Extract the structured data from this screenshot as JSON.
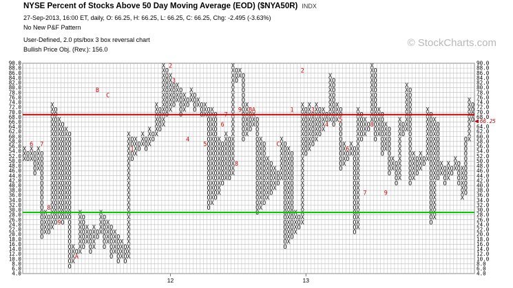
{
  "header": {
    "title": "NYSE Percent of Stocks Above 50 Day Moving Average (EOD) ($NYA50R)",
    "exchange": "INDX",
    "line1": "27-Sep-2013, 16:00 ET, daily, O: 66.25, H: 66.25, L: 66.25, C: 66.25, Chg: -2.495 (-3.63%)",
    "line2": "No New P&F Pattern",
    "line3": "User-Defined, 2.0 pts/box 3 box reversal chart",
    "line4": "Bullish Price Obj. (Rev.): 156.0"
  },
  "watermark": "© StockCharts.com",
  "colors": {
    "x_mark": "#111111",
    "o_mark": "#111111",
    "month_marker": "#cc0000",
    "upper_line": "#cc0000",
    "lower_line": "#00cc00",
    "grid": "#bbbbbb",
    "last_price": "#cc0000"
  },
  "chart_data": {
    "type": "point-and-figure",
    "box_size": 2,
    "reversal": 3,
    "y_range": [
      4,
      90
    ],
    "y_ticks_left": [
      "90.0",
      "88.0",
      "86.0",
      "84.0",
      "82.0",
      "80.0",
      "78.0",
      "76.0",
      "74.0",
      "72.0",
      "70.0",
      "68.0",
      "66.0",
      "64.0",
      "62.0",
      "60.0",
      "58.0",
      "56.0",
      "54.0",
      "52.0",
      "50.0",
      "48.0",
      "46.0",
      "44.0",
      "42.0",
      "40.0",
      "38.0",
      "36.0",
      "34.0",
      "32.0",
      "30.0",
      "28.0",
      "26.0",
      "24.0",
      "22.0",
      "20.0",
      "18.0",
      "16.0",
      "14.0",
      "12.0",
      "10.0",
      "8.0",
      "6.0",
      "4.0"
    ],
    "y_ticks_right": [
      "90.0",
      "88.0",
      "86.0",
      "84.0",
      "82.0",
      "80.0",
      "78.0",
      "76.0",
      "74.0",
      "72.0",
      "70.0",
      "68.0",
      "64.0",
      "62.0",
      "60.0",
      "58.0",
      "56.0",
      "54.0",
      "52.0",
      "50.0",
      "48.0",
      "46.0",
      "44.0",
      "42.0",
      "40.0",
      "38.0",
      "36.0",
      "34.0",
      "32.0",
      "30.0",
      "28.0",
      "26.0",
      "24.0",
      "22.0",
      "20.0",
      "18.0",
      "16.0",
      "14.0",
      "12.0",
      "10.0",
      "8.0",
      "6.0",
      "4.0"
    ],
    "last_value": 66.25,
    "last_value_label": "66.25",
    "upper_signal_line": 69,
    "lower_signal_line": 29,
    "x_labels": [
      {
        "label": "12",
        "column": 42
      },
      {
        "label": "13",
        "column": 81
      }
    ],
    "columns": [
      {
        "type": "X",
        "low": 50,
        "high": 54
      },
      {
        "type": "O",
        "low": 50,
        "high": 52
      },
      {
        "type": "X",
        "low": 50,
        "high": 54
      },
      {
        "type": "O",
        "low": 44,
        "high": 52
      },
      {
        "type": "X",
        "low": 46,
        "high": 54
      },
      {
        "type": "O",
        "low": 18,
        "high": 52
      },
      {
        "type": "X",
        "low": 20,
        "high": 28
      },
      {
        "type": "O",
        "low": 20,
        "high": 26
      },
      {
        "type": "X",
        "low": 22,
        "high": 72
      },
      {
        "type": "O",
        "low": 24,
        "high": 70
      },
      {
        "type": "X",
        "low": 26,
        "high": 66
      },
      {
        "type": "O",
        "low": 24,
        "high": 64
      },
      {
        "type": "X",
        "low": 26,
        "high": 62
      },
      {
        "type": "O",
        "low": 6,
        "high": 60
      },
      {
        "type": "X",
        "low": 8,
        "high": 14
      },
      {
        "type": "O",
        "low": 10,
        "high": 12
      },
      {
        "type": "X",
        "low": 12,
        "high": 28
      },
      {
        "type": "O",
        "low": 14,
        "high": 26
      },
      {
        "type": "X",
        "low": 16,
        "high": 22
      },
      {
        "type": "O",
        "low": 12,
        "high": 20
      },
      {
        "type": "X",
        "low": 14,
        "high": 22
      },
      {
        "type": "O",
        "low": 18,
        "high": 20
      },
      {
        "type": "X",
        "low": 20,
        "high": 28
      },
      {
        "type": "O",
        "low": 14,
        "high": 26
      },
      {
        "type": "X",
        "low": 16,
        "high": 24
      },
      {
        "type": "O",
        "low": 10,
        "high": 22
      },
      {
        "type": "X",
        "low": 12,
        "high": 20
      },
      {
        "type": "O",
        "low": 8,
        "high": 18
      },
      {
        "type": "X",
        "low": 10,
        "high": 16
      },
      {
        "type": "O",
        "low": 8,
        "high": 14
      },
      {
        "type": "X",
        "low": 10,
        "high": 60
      },
      {
        "type": "O",
        "low": 50,
        "high": 58
      },
      {
        "type": "X",
        "low": 52,
        "high": 58
      },
      {
        "type": "O",
        "low": 54,
        "high": 56
      },
      {
        "type": "X",
        "low": 56,
        "high": 60
      },
      {
        "type": "O",
        "low": 54,
        "high": 58
      },
      {
        "type": "X",
        "low": 56,
        "high": 62
      },
      {
        "type": "O",
        "low": 58,
        "high": 60
      },
      {
        "type": "X",
        "low": 60,
        "high": 72
      },
      {
        "type": "O",
        "low": 62,
        "high": 70
      },
      {
        "type": "X",
        "low": 64,
        "high": 88
      },
      {
        "type": "O",
        "low": 68,
        "high": 86
      },
      {
        "type": "X",
        "low": 70,
        "high": 84
      },
      {
        "type": "O",
        "low": 72,
        "high": 82
      },
      {
        "type": "X",
        "low": 74,
        "high": 80
      },
      {
        "type": "O",
        "low": 68,
        "high": 78
      },
      {
        "type": "X",
        "low": 70,
        "high": 76
      },
      {
        "type": "O",
        "low": 72,
        "high": 74
      },
      {
        "type": "X",
        "low": 74,
        "high": 78
      },
      {
        "type": "O",
        "low": 70,
        "high": 76
      },
      {
        "type": "X",
        "low": 72,
        "high": 74
      },
      {
        "type": "O",
        "low": 68,
        "high": 72
      },
      {
        "type": "X",
        "low": 68,
        "high": 72
      },
      {
        "type": "O",
        "low": 30,
        "high": 70
      },
      {
        "type": "X",
        "low": 32,
        "high": 70
      },
      {
        "type": "O",
        "low": 34,
        "high": 68
      },
      {
        "type": "X",
        "low": 36,
        "high": 58
      },
      {
        "type": "O",
        "low": 40,
        "high": 56
      },
      {
        "type": "X",
        "low": 42,
        "high": 60
      },
      {
        "type": "O",
        "low": 42,
        "high": 58
      },
      {
        "type": "X",
        "low": 44,
        "high": 88
      },
      {
        "type": "O",
        "low": 82,
        "high": 86
      },
      {
        "type": "X",
        "low": 84,
        "high": 86
      },
      {
        "type": "O",
        "low": 58,
        "high": 84
      },
      {
        "type": "X",
        "low": 60,
        "high": 72
      },
      {
        "type": "O",
        "low": 62,
        "high": 70
      },
      {
        "type": "X",
        "low": 64,
        "high": 68
      },
      {
        "type": "O",
        "low": 28,
        "high": 66
      },
      {
        "type": "X",
        "low": 30,
        "high": 58
      },
      {
        "type": "O",
        "low": 32,
        "high": 56
      },
      {
        "type": "X",
        "low": 34,
        "high": 50
      },
      {
        "type": "O",
        "low": 36,
        "high": 48
      },
      {
        "type": "X",
        "low": 38,
        "high": 46
      },
      {
        "type": "O",
        "low": 40,
        "high": 44
      },
      {
        "type": "X",
        "low": 42,
        "high": 58
      },
      {
        "type": "O",
        "low": 14,
        "high": 56
      },
      {
        "type": "X",
        "low": 16,
        "high": 54
      },
      {
        "type": "O",
        "low": 18,
        "high": 52
      },
      {
        "type": "X",
        "low": 20,
        "high": 28
      },
      {
        "type": "O",
        "low": 22,
        "high": 26
      },
      {
        "type": "X",
        "low": 24,
        "high": 72
      },
      {
        "type": "O",
        "low": 52,
        "high": 70
      },
      {
        "type": "X",
        "low": 54,
        "high": 72
      },
      {
        "type": "O",
        "low": 56,
        "high": 70
      },
      {
        "type": "X",
        "low": 58,
        "high": 72
      },
      {
        "type": "O",
        "low": 60,
        "high": 70
      },
      {
        "type": "X",
        "low": 62,
        "high": 70
      },
      {
        "type": "O",
        "low": 64,
        "high": 68
      },
      {
        "type": "X",
        "low": 66,
        "high": 84
      },
      {
        "type": "O",
        "low": 64,
        "high": 82
      },
      {
        "type": "X",
        "low": 66,
        "high": 72
      },
      {
        "type": "O",
        "low": 46,
        "high": 70
      },
      {
        "type": "X",
        "low": 48,
        "high": 56
      },
      {
        "type": "O",
        "low": 50,
        "high": 54
      },
      {
        "type": "X",
        "low": 52,
        "high": 56
      },
      {
        "type": "O",
        "low": 20,
        "high": 54
      },
      {
        "type": "X",
        "low": 22,
        "high": 70
      },
      {
        "type": "O",
        "low": 58,
        "high": 68
      },
      {
        "type": "X",
        "low": 60,
        "high": 66
      },
      {
        "type": "O",
        "low": 62,
        "high": 64
      },
      {
        "type": "X",
        "low": 64,
        "high": 88
      },
      {
        "type": "O",
        "low": 58,
        "high": 86
      },
      {
        "type": "X",
        "low": 60,
        "high": 70
      },
      {
        "type": "O",
        "low": 52,
        "high": 68
      },
      {
        "type": "X",
        "low": 54,
        "high": 64
      },
      {
        "type": "O",
        "low": 44,
        "high": 62
      },
      {
        "type": "X",
        "low": 46,
        "high": 50
      },
      {
        "type": "O",
        "low": 40,
        "high": 48
      },
      {
        "type": "X",
        "low": 42,
        "high": 66
      },
      {
        "type": "O",
        "low": 60,
        "high": 64
      },
      {
        "type": "X",
        "low": 62,
        "high": 80
      },
      {
        "type": "O",
        "low": 40,
        "high": 78
      },
      {
        "type": "X",
        "low": 42,
        "high": 52
      },
      {
        "type": "O",
        "low": 44,
        "high": 50
      },
      {
        "type": "X",
        "low": 46,
        "high": 52
      },
      {
        "type": "O",
        "low": 48,
        "high": 50
      },
      {
        "type": "X",
        "low": 50,
        "high": 70
      },
      {
        "type": "O",
        "low": 24,
        "high": 68
      },
      {
        "type": "X",
        "low": 26,
        "high": 66
      },
      {
        "type": "O",
        "low": 42,
        "high": 64
      },
      {
        "type": "X",
        "low": 44,
        "high": 48
      },
      {
        "type": "O",
        "low": 40,
        "high": 46
      },
      {
        "type": "X",
        "low": 42,
        "high": 48
      },
      {
        "type": "O",
        "low": 44,
        "high": 46
      },
      {
        "type": "X",
        "low": 46,
        "high": 50
      },
      {
        "type": "O",
        "low": 40,
        "high": 48
      },
      {
        "type": "X",
        "low": 34,
        "high": 46
      },
      {
        "type": "O",
        "low": 36,
        "high": 58
      },
      {
        "type": "X",
        "low": 58,
        "high": 74
      },
      {
        "type": "O",
        "low": 66,
        "high": 72
      }
    ],
    "month_markers": [
      {
        "label": "6",
        "column": 2,
        "value": 56
      },
      {
        "label": "7",
        "column": 5,
        "value": 56
      },
      {
        "label": "8",
        "column": 7,
        "value": 30
      },
      {
        "label": "9",
        "column": 10,
        "value": 24
      },
      {
        "label": "A",
        "column": 15,
        "value": 10
      },
      {
        "label": "B",
        "column": 21,
        "value": 78
      },
      {
        "label": "C",
        "column": 24,
        "value": 76
      },
      {
        "label": "1",
        "column": 31,
        "value": 54
      },
      {
        "label": "2",
        "column": 42,
        "value": 88
      },
      {
        "label": "3",
        "column": 43,
        "value": 82
      },
      {
        "label": "4",
        "column": 47,
        "value": 58
      },
      {
        "label": "5",
        "column": 52,
        "value": 56
      },
      {
        "label": "6",
        "column": 57,
        "value": 64
      },
      {
        "label": "7",
        "column": 58,
        "value": 68
      },
      {
        "label": "8",
        "column": 61,
        "value": 48
      },
      {
        "label": "9",
        "column": 62,
        "value": 70
      },
      {
        "label": "A",
        "column": 66,
        "value": 70
      },
      {
        "label": "B",
        "column": 65,
        "value": 70
      },
      {
        "label": "C",
        "column": 73,
        "value": 56
      },
      {
        "label": "1",
        "column": 77,
        "value": 70
      },
      {
        "label": "2",
        "column": 80,
        "value": 86
      },
      {
        "label": "3",
        "column": 83,
        "value": 70
      },
      {
        "label": "4",
        "column": 87,
        "value": 64
      },
      {
        "label": "5",
        "column": 91,
        "value": 66
      },
      {
        "label": "6",
        "column": 93,
        "value": 54
      },
      {
        "label": "7",
        "column": 98,
        "value": 36
      },
      {
        "label": "8",
        "column": 100,
        "value": 64
      },
      {
        "label": "9",
        "column": 104,
        "value": 36
      }
    ]
  }
}
